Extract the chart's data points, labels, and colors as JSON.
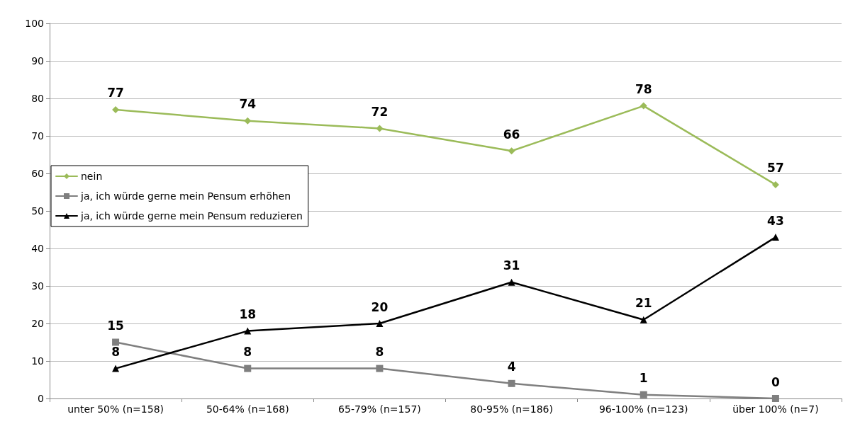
{
  "chart_data": {
    "type": "line",
    "categories": [
      "unter 50% (n=158)",
      "50-64% (n=168)",
      "65-79% (n=157)",
      "80-95% (n=186)",
      "96-100% (n=123)",
      "über 100% (n=7)"
    ],
    "series": [
      {
        "name": "nein",
        "color": "#9bbb59",
        "marker": "diamond",
        "values": [
          77,
          74,
          72,
          66,
          78,
          57
        ]
      },
      {
        "name": "ja, ich würde gerne mein Pensum erhöhen",
        "color": "#7f7f7f",
        "marker": "square",
        "values": [
          15,
          8,
          8,
          4,
          1,
          0
        ]
      },
      {
        "name": "ja, ich würde gerne mein Pensum reduzieren",
        "color": "#000000",
        "marker": "triangle",
        "values": [
          8,
          18,
          20,
          31,
          21,
          43
        ]
      }
    ],
    "ylim": [
      0,
      100
    ],
    "yticks": [
      0,
      10,
      20,
      30,
      40,
      50,
      60,
      70,
      80,
      90,
      100
    ],
    "grid": "y",
    "legend": "left",
    "data_labels": true
  }
}
